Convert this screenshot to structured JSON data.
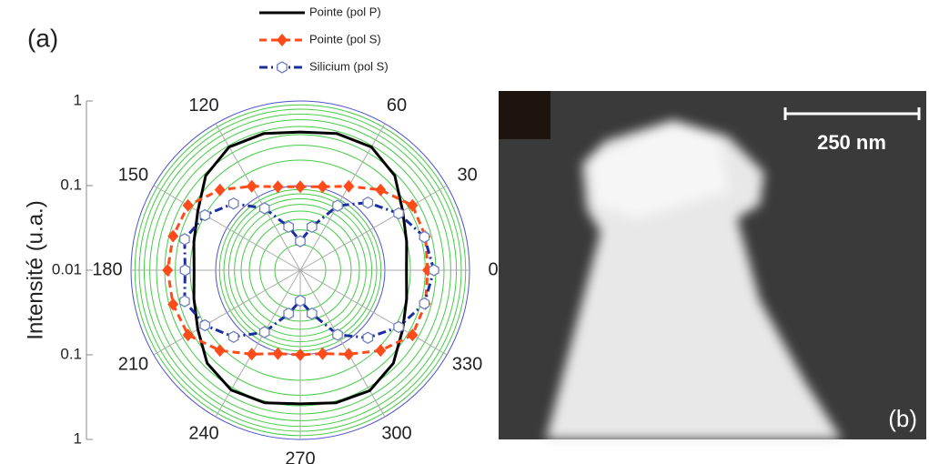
{
  "chart_data": {
    "type": "polar",
    "panel_label": "(a)",
    "ylabel": "Intensité  (u.a.)",
    "rscale": "log",
    "rlim": [
      0.01,
      1
    ],
    "rticks": [
      0.01,
      0.1,
      1
    ],
    "thetaticks": [
      0,
      30,
      60,
      120,
      150,
      180,
      210,
      240,
      270,
      300,
      330
    ],
    "theta": [
      0,
      15,
      30,
      45,
      60,
      75,
      90,
      105,
      120,
      135,
      150,
      165,
      180,
      195,
      210,
      225,
      240,
      255,
      270,
      285,
      300,
      315,
      330,
      345
    ],
    "series": [
      {
        "name": "Pointe (pol P)",
        "color": "#000000",
        "style": "solid",
        "marker": "none",
        "values": [
          0.18,
          0.2,
          0.25,
          0.38,
          0.48,
          0.47,
          0.43,
          0.47,
          0.48,
          0.38,
          0.25,
          0.2,
          0.18,
          0.2,
          0.25,
          0.36,
          0.43,
          0.42,
          0.38,
          0.42,
          0.44,
          0.36,
          0.25,
          0.2
        ]
      },
      {
        "name": "Pointe (pol S)",
        "color": "#ff4a1a",
        "style": "dash",
        "marker": "diamond",
        "values": [
          0.32,
          0.34,
          0.34,
          0.22,
          0.14,
          0.105,
          0.097,
          0.105,
          0.14,
          0.22,
          0.34,
          0.36,
          0.37,
          0.36,
          0.34,
          0.22,
          0.14,
          0.105,
          0.1,
          0.105,
          0.14,
          0.22,
          0.34,
          0.34
        ]
      },
      {
        "name": "Silicium (pol S)",
        "color": "#1a2ea0",
        "style": "dashdot",
        "marker": "hexagon",
        "values": [
          0.38,
          0.33,
          0.22,
          0.135,
          0.076,
          0.034,
          0.022,
          0.034,
          0.07,
          0.13,
          0.2,
          0.26,
          0.23,
          0.26,
          0.2,
          0.13,
          0.07,
          0.034,
          0.023,
          0.034,
          0.076,
          0.135,
          0.22,
          0.33
        ]
      }
    ]
  },
  "image": {
    "panel_label": "(b)",
    "scale_bar": "250 nm"
  }
}
